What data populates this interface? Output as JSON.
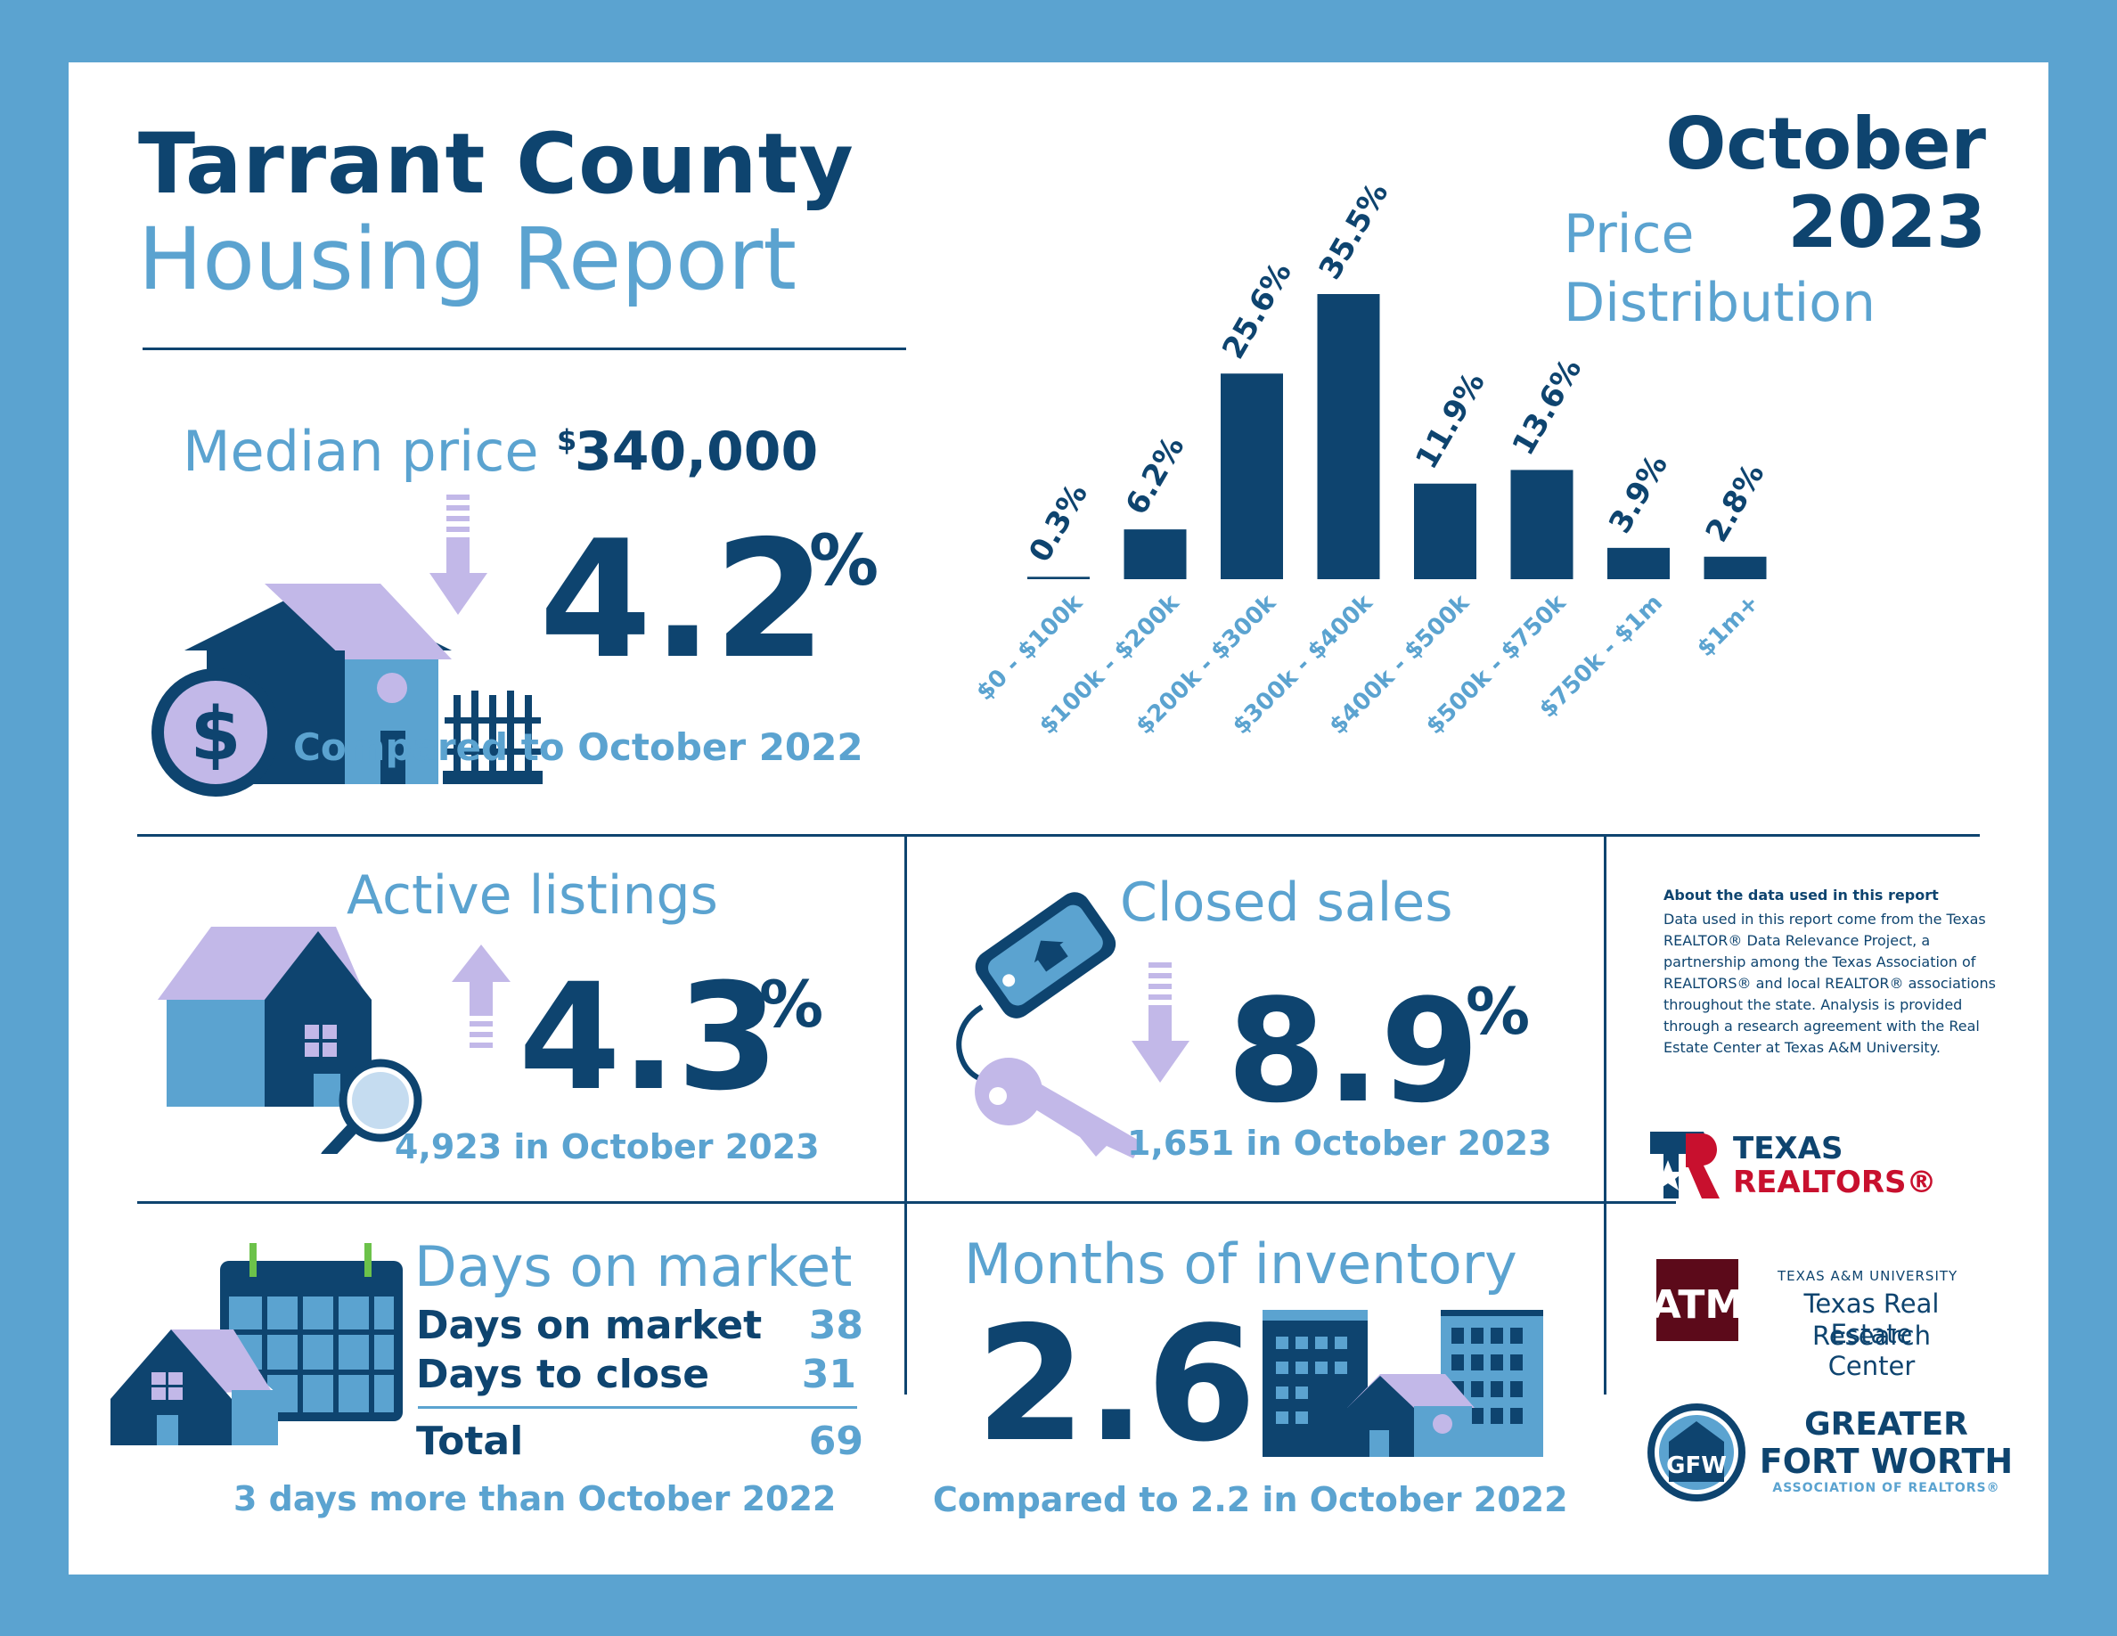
{
  "header": {
    "title_line1": "Tarrant County",
    "title_line2": "Housing Report",
    "month": "October",
    "year": "2023"
  },
  "median": {
    "label": "Median price",
    "dollar_sign": "$",
    "value": "340,000",
    "change": "4.2",
    "percent_sign": "%",
    "direction": "down",
    "comparison": "Compared to October 2022"
  },
  "price_distribution": {
    "title_line1": "Price",
    "title_line2": "Distribution"
  },
  "chart_data": {
    "type": "bar",
    "title": "Price Distribution",
    "categories": [
      "$0 - $100k",
      "$100k - $200k",
      "$200k - $300k",
      "$300k - $400k",
      "$400k - $500k",
      "$500k - $750k",
      "$750k - $1m",
      "$1m+"
    ],
    "values": [
      0.3,
      6.2,
      25.6,
      35.5,
      11.9,
      13.6,
      3.9,
      2.8
    ],
    "value_labels": [
      "0.3%",
      "6.2%",
      "25.6%",
      "35.5%",
      "11.9%",
      "13.6%",
      "3.9%",
      "2.8%"
    ],
    "ylim": [
      0,
      35.5
    ],
    "grid": false,
    "bar_color": "#0e446f",
    "label_color": "#5ba3d0"
  },
  "active": {
    "label": "Active listings",
    "change": "4.3",
    "percent_sign": "%",
    "direction": "up",
    "detail": "4,923 in October 2023"
  },
  "closed": {
    "label": "Closed sales",
    "change": "8.9",
    "percent_sign": "%",
    "direction": "down",
    "detail": "1,651 in October 2023"
  },
  "dom": {
    "label": "Days on market",
    "rows": [
      {
        "label": "Days on market",
        "value": "38"
      },
      {
        "label": "Days to close",
        "value": "31"
      }
    ],
    "total_label": "Total",
    "total_value": "69",
    "comparison": "3 days more than October 2022"
  },
  "inventory": {
    "label": "Months of inventory",
    "value": "2.6",
    "comparison": "Compared to 2.2 in October 2022"
  },
  "about": {
    "heading": "About the data used in this report",
    "body": "Data used in this report come from the Texas REALTOR® Data Relevance Project, a partnership among the Texas Association of REALTORS® and local REALTOR® associations throughout the state. Analysis is provided through a research agreement with the Real Estate Center at Texas A&M University."
  },
  "logos": {
    "texas_realtors_line1": "TEXAS",
    "texas_realtors_line2": "REALTORS®",
    "tamu_small": "TEXAS A&M UNIVERSITY",
    "tamu_line1": "Texas Real Estate",
    "tamu_line2": "Research Center",
    "gfw_line1": "GREATER",
    "gfw_line2": "FORT WORTH",
    "gfw_line3": "ASSOCIATION OF REALTORS®",
    "gfw_monogram": "GFW"
  },
  "colors": {
    "navy": "#0e446f",
    "blue": "#5ba3d0",
    "lavender": "#c2b8e8",
    "maroon": "#5c0a1a",
    "red": "#c8102e",
    "green": "#6cc24a"
  }
}
